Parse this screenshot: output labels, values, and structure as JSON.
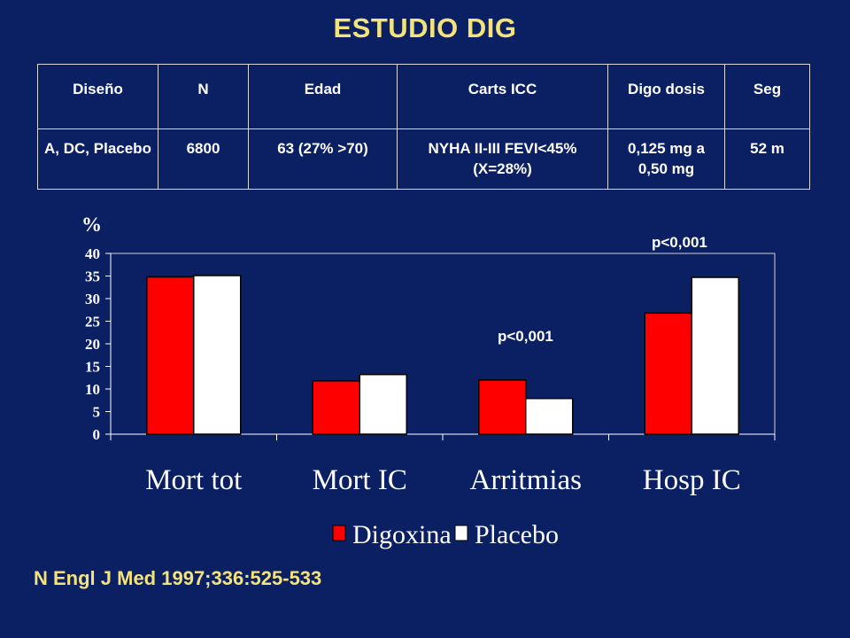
{
  "title": "ESTUDIO DIG",
  "table": {
    "headers": [
      "Diseño",
      "N",
      "Edad",
      "Carts ICC",
      "Digo dosis",
      "Seg"
    ],
    "row": [
      "A, DC, Placebo",
      "6800",
      "63 (27% >70)",
      "NYHA II-III FEVI<45% (X=28%)",
      "0,125 mg a 0,50 mg",
      "52 m"
    ]
  },
  "notes": {
    "ylabel": "%",
    "p_arritmias": "p<0,001",
    "p_hosp": "p<0,001"
  },
  "source": "N Engl J Med 1997;336:525-533",
  "colors": {
    "background": "#0b1f63",
    "title": "#f4e27a",
    "digoxina": "#ff0000",
    "placebo": "#ffffff"
  },
  "chart_data": {
    "type": "bar",
    "categories": [
      "Mort tot",
      "Mort IC",
      "Arritmias",
      "Hosp IC"
    ],
    "series": [
      {
        "name": "Digoxina",
        "values": [
          34.8,
          11.8,
          12.0,
          26.8
        ]
      },
      {
        "name": "Placebo",
        "values": [
          35.1,
          13.2,
          7.9,
          34.7
        ]
      }
    ],
    "ylabel": "%",
    "ylim": [
      0,
      40
    ],
    "yticks": [
      0,
      5,
      10,
      15,
      20,
      25,
      30,
      35,
      40
    ],
    "grid": false,
    "legend_position": "bottom"
  }
}
